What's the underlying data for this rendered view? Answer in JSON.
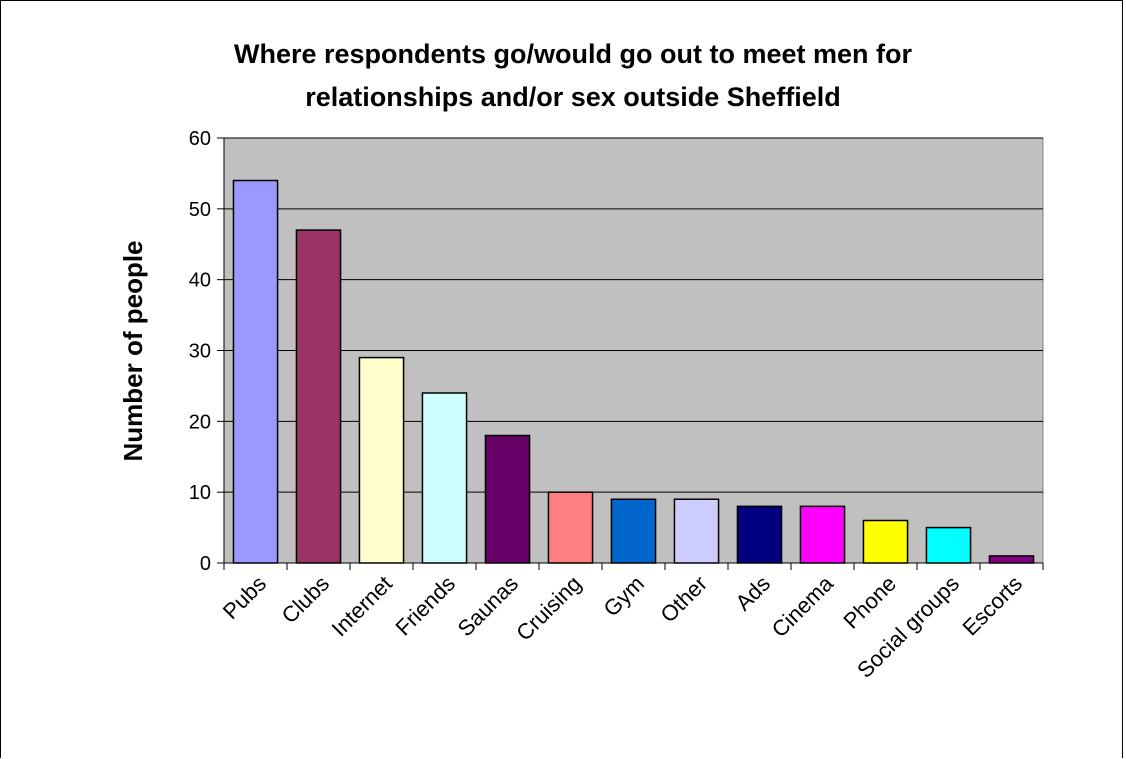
{
  "chart_data": {
    "type": "bar",
    "title_lines": [
      "Where respondents go/would go out to meet men for",
      "relationships and/or sex outside Sheffield"
    ],
    "xlabel": "",
    "ylabel": "Number of people",
    "ylim": [
      0,
      60
    ],
    "yticks": [
      0,
      10,
      20,
      30,
      40,
      50,
      60
    ],
    "grid": true,
    "legend": "none",
    "plot_background": "#c0c0c0",
    "categories": [
      "Pubs",
      "Clubs",
      "Internet",
      "Friends",
      "Saunas",
      "Cruising",
      "Gym",
      "Other",
      "Ads",
      "Cinema",
      "Phone",
      "Social groups",
      "Escorts"
    ],
    "values": [
      54,
      47,
      29,
      24,
      18,
      10,
      9,
      9,
      8,
      8,
      6,
      5,
      1
    ],
    "bar_colors": [
      "#9999ff",
      "#993366",
      "#ffffcc",
      "#ccffff",
      "#660066",
      "#ff8080",
      "#0066cc",
      "#ccccff",
      "#000080",
      "#ff00ff",
      "#ffff00",
      "#00ffff",
      "#800080"
    ]
  }
}
